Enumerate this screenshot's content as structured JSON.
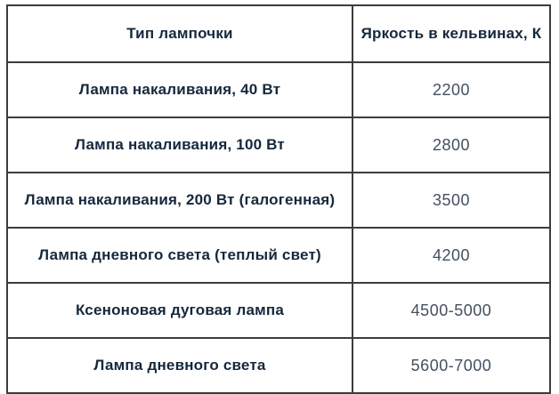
{
  "table": {
    "columns": [
      "Тип лампочки",
      "Яркость в кельвинах, К"
    ],
    "rows": [
      {
        "type": "Лампа накаливания, 40 Вт",
        "kelvin": "2200"
      },
      {
        "type": "Лампа накаливания, 100 Вт",
        "kelvin": "2800"
      },
      {
        "type": "Лампа накаливания, 200 Вт (галогенная)",
        "kelvin": "3500"
      },
      {
        "type": "Лампа дневного света (теплый свет)",
        "kelvin": "4200"
      },
      {
        "type": "Ксеноновая дуговая лампа",
        "kelvin": "4500-5000"
      },
      {
        "type": "Лампа дневного света",
        "kelvin": "5600-7000"
      }
    ]
  },
  "colors": {
    "border": "#3c3c3c",
    "label_text": "#15283c",
    "value_text": "#43505f",
    "background": "#ffffff"
  },
  "chart_data": {
    "type": "table",
    "title": "",
    "columns": [
      "Тип лампочки",
      "Яркость в кельвинах, К"
    ],
    "categories": [
      "Лампа накаливания, 40 Вт",
      "Лампа накаливания, 100 Вт",
      "Лампа накаливания, 200 Вт (галогенная)",
      "Лампа дневного света (теплый свет)",
      "Ксеноновая дуговая лампа",
      "Лампа дневного света"
    ],
    "values": [
      "2200",
      "2800",
      "3500",
      "4200",
      "4500-5000",
      "5600-7000"
    ],
    "values_numeric_ranges": [
      [
        2200,
        2200
      ],
      [
        2800,
        2800
      ],
      [
        3500,
        3500
      ],
      [
        4200,
        4200
      ],
      [
        4500,
        5000
      ],
      [
        5600,
        7000
      ]
    ],
    "value_unit": "K"
  }
}
